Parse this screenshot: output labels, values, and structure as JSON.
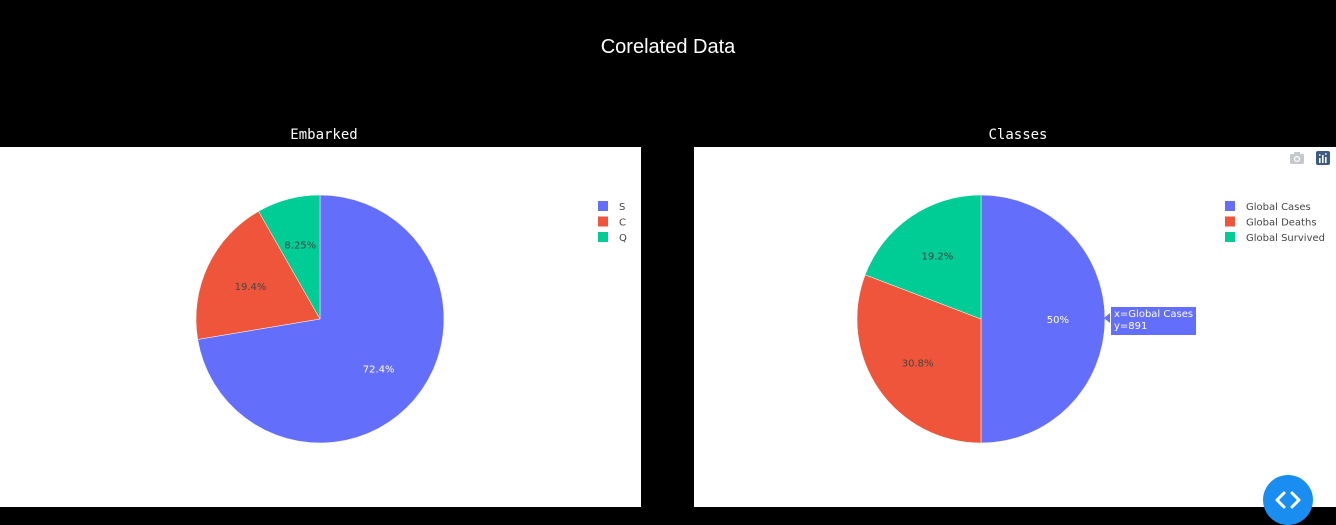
{
  "page": {
    "title": "Corelated Data"
  },
  "chart_data": [
    {
      "type": "pie",
      "title": "Embarked",
      "categories": [
        "S",
        "C",
        "Q"
      ],
      "values": [
        72.4,
        19.4,
        8.25
      ],
      "labels": [
        "72.4%",
        "19.4%",
        "8.25%"
      ],
      "colors": [
        "#636efa",
        "#ef553b",
        "#00cc96"
      ],
      "legend_position": "top-right"
    },
    {
      "type": "pie",
      "title": "Classes",
      "categories": [
        "Global Cases",
        "Global Deaths",
        "Global Survived"
      ],
      "values": [
        50,
        30.8,
        19.2
      ],
      "labels": [
        "50%",
        "30.8%",
        "19.2%"
      ],
      "colors": [
        "#636efa",
        "#ef553b",
        "#00cc96"
      ],
      "legend_position": "top-right",
      "hover": {
        "line1": "x=Global Cases",
        "line2": "y=891"
      }
    }
  ],
  "icons": {
    "camera": "camera-icon",
    "plotly": "plotly-logo-icon",
    "code": "code-toggle-icon"
  }
}
